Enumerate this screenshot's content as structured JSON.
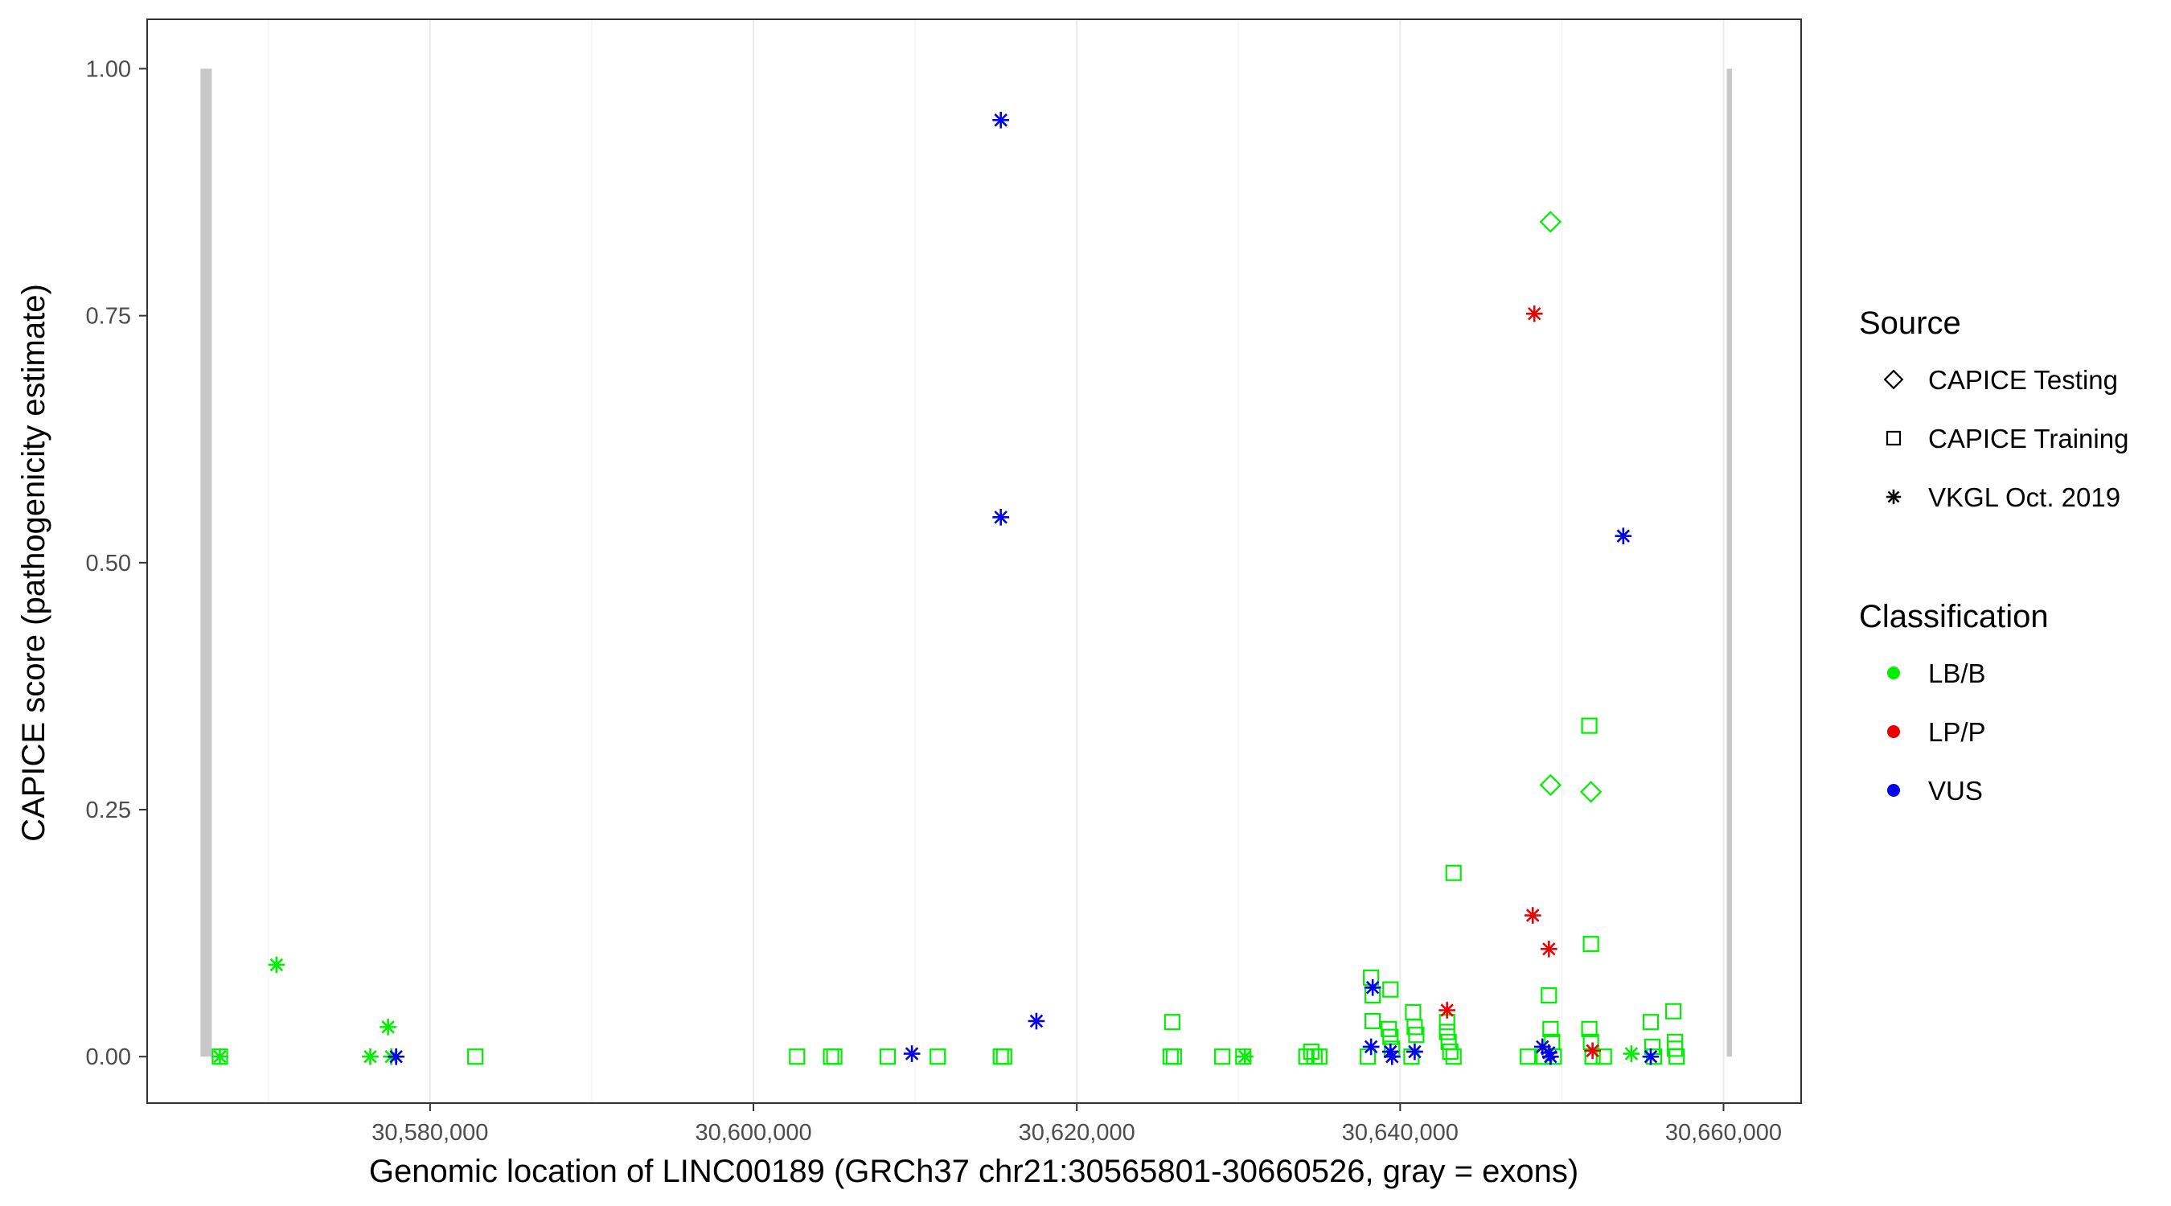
{
  "chart_data": {
    "type": "scatter",
    "title": "",
    "xlabel": "Genomic location of LINC00189 (GRCh37 chr21:30565801-30660526, gray = exons)",
    "ylabel": "CAPICE score (pathogenicity estimate)",
    "xlim": [
      30562500,
      30664800
    ],
    "ylim": [
      -0.047,
      1.05
    ],
    "x_ticks": [
      30580000,
      30600000,
      30620000,
      30640000,
      30660000
    ],
    "x_tick_labels": [
      "30,580,000",
      "30,600,000",
      "30,620,000",
      "30,640,000",
      "30,660,000"
    ],
    "y_ticks": [
      0,
      0.25,
      0.5,
      0.75,
      1.0
    ],
    "y_tick_labels": [
      "0.00",
      "0.25",
      "0.50",
      "0.75",
      "1.00"
    ],
    "grid": "vertical major lines only",
    "legend_position": "right",
    "exons": [
      {
        "start": 30565801,
        "end": 30566500
      },
      {
        "start": 30660200,
        "end": 30660526
      }
    ],
    "legend": {
      "source_title": "Source",
      "source_items": [
        {
          "label": "CAPICE Testing",
          "shape": "diamond"
        },
        {
          "label": "CAPICE Training",
          "shape": "square"
        },
        {
          "label": "VKGL Oct. 2019",
          "shape": "asterisk"
        }
      ],
      "class_title": "Classification",
      "class_items": [
        {
          "label": "LB/B",
          "color": "#00ee00"
        },
        {
          "label": "LP/P",
          "color": "#ee0000"
        },
        {
          "label": "VUS",
          "color": "#0000ee"
        }
      ]
    },
    "class_colors": {
      "LB/B": "#00ee00",
      "LP/P": "#ee0000",
      "VUS": "#0000ee"
    },
    "series": [
      {
        "source": "CAPICE Testing",
        "classification": "LB/B",
        "points": [
          [
            30649300,
            0.845
          ],
          [
            30649300,
            0.275
          ],
          [
            30651800,
            0.268
          ]
        ]
      },
      {
        "source": "CAPICE Training",
        "classification": "LB/B",
        "points": [
          [
            30567000,
            0.0
          ],
          [
            30582800,
            0.0
          ],
          [
            30602700,
            0.0
          ],
          [
            30604800,
            0.0
          ],
          [
            30605000,
            0.0
          ],
          [
            30608300,
            0.0
          ],
          [
            30611400,
            0.0
          ],
          [
            30615300,
            0.0
          ],
          [
            30615500,
            0.0
          ],
          [
            30625900,
            0.035
          ],
          [
            30625800,
            0.0
          ],
          [
            30626000,
            0.0
          ],
          [
            30629000,
            0.0
          ],
          [
            30630300,
            0.0
          ],
          [
            30634200,
            0.0
          ],
          [
            30634500,
            0.005
          ],
          [
            30634700,
            0.0
          ],
          [
            30635000,
            0.0
          ],
          [
            30638000,
            0.0
          ],
          [
            30638200,
            0.08
          ],
          [
            30638300,
            0.062
          ],
          [
            30638300,
            0.036
          ],
          [
            30639400,
            0.068
          ],
          [
            30639300,
            0.028
          ],
          [
            30639400,
            0.02
          ],
          [
            30639500,
            0.008
          ],
          [
            30640800,
            0.045
          ],
          [
            30640900,
            0.03
          ],
          [
            30641000,
            0.022
          ],
          [
            30640700,
            0.0
          ],
          [
            30642900,
            0.035
          ],
          [
            30642900,
            0.025
          ],
          [
            30643000,
            0.015
          ],
          [
            30643100,
            0.005
          ],
          [
            30643300,
            0.0
          ],
          [
            30643300,
            0.186
          ],
          [
            30647900,
            0.0
          ],
          [
            30648900,
            0.0
          ],
          [
            30649200,
            0.062
          ],
          [
            30649300,
            0.028
          ],
          [
            30649400,
            0.015
          ],
          [
            30649500,
            0.0
          ],
          [
            30651700,
            0.335
          ],
          [
            30651800,
            0.114
          ],
          [
            30651700,
            0.028
          ],
          [
            30651800,
            0.015
          ],
          [
            30651900,
            0.0
          ],
          [
            30652600,
            0.0
          ],
          [
            30655500,
            0.035
          ],
          [
            30655600,
            0.01
          ],
          [
            30655700,
            0.0
          ],
          [
            30656900,
            0.046
          ],
          [
            30657000,
            0.015
          ],
          [
            30657000,
            0.008
          ],
          [
            30657100,
            0.0
          ]
        ]
      },
      {
        "source": "VKGL Oct. 2019",
        "classification": "LB/B",
        "points": [
          [
            30567000,
            0.0
          ],
          [
            30570500,
            0.093
          ],
          [
            30576300,
            0.0
          ],
          [
            30577400,
            0.03
          ],
          [
            30577600,
            0.0
          ],
          [
            30630400,
            0.0
          ],
          [
            30654300,
            0.003
          ]
        ]
      },
      {
        "source": "VKGL Oct. 2019",
        "classification": "LP/P",
        "points": [
          [
            30642900,
            0.047
          ],
          [
            30648300,
            0.752
          ],
          [
            30648200,
            0.143
          ],
          [
            30649200,
            0.109
          ],
          [
            30651900,
            0.006
          ]
        ]
      },
      {
        "source": "VKGL Oct. 2019",
        "classification": "VUS",
        "points": [
          [
            30577900,
            0.0
          ],
          [
            30609800,
            0.003
          ],
          [
            30615300,
            0.948
          ],
          [
            30615300,
            0.546
          ],
          [
            30617500,
            0.036
          ],
          [
            30638300,
            0.07
          ],
          [
            30638200,
            0.01
          ],
          [
            30639400,
            0.005
          ],
          [
            30639500,
            0.0
          ],
          [
            30640900,
            0.005
          ],
          [
            30648800,
            0.01
          ],
          [
            30649200,
            0.004
          ],
          [
            30649300,
            0.0
          ],
          [
            30653800,
            0.527
          ],
          [
            30655500,
            0.0
          ]
        ]
      }
    ]
  }
}
